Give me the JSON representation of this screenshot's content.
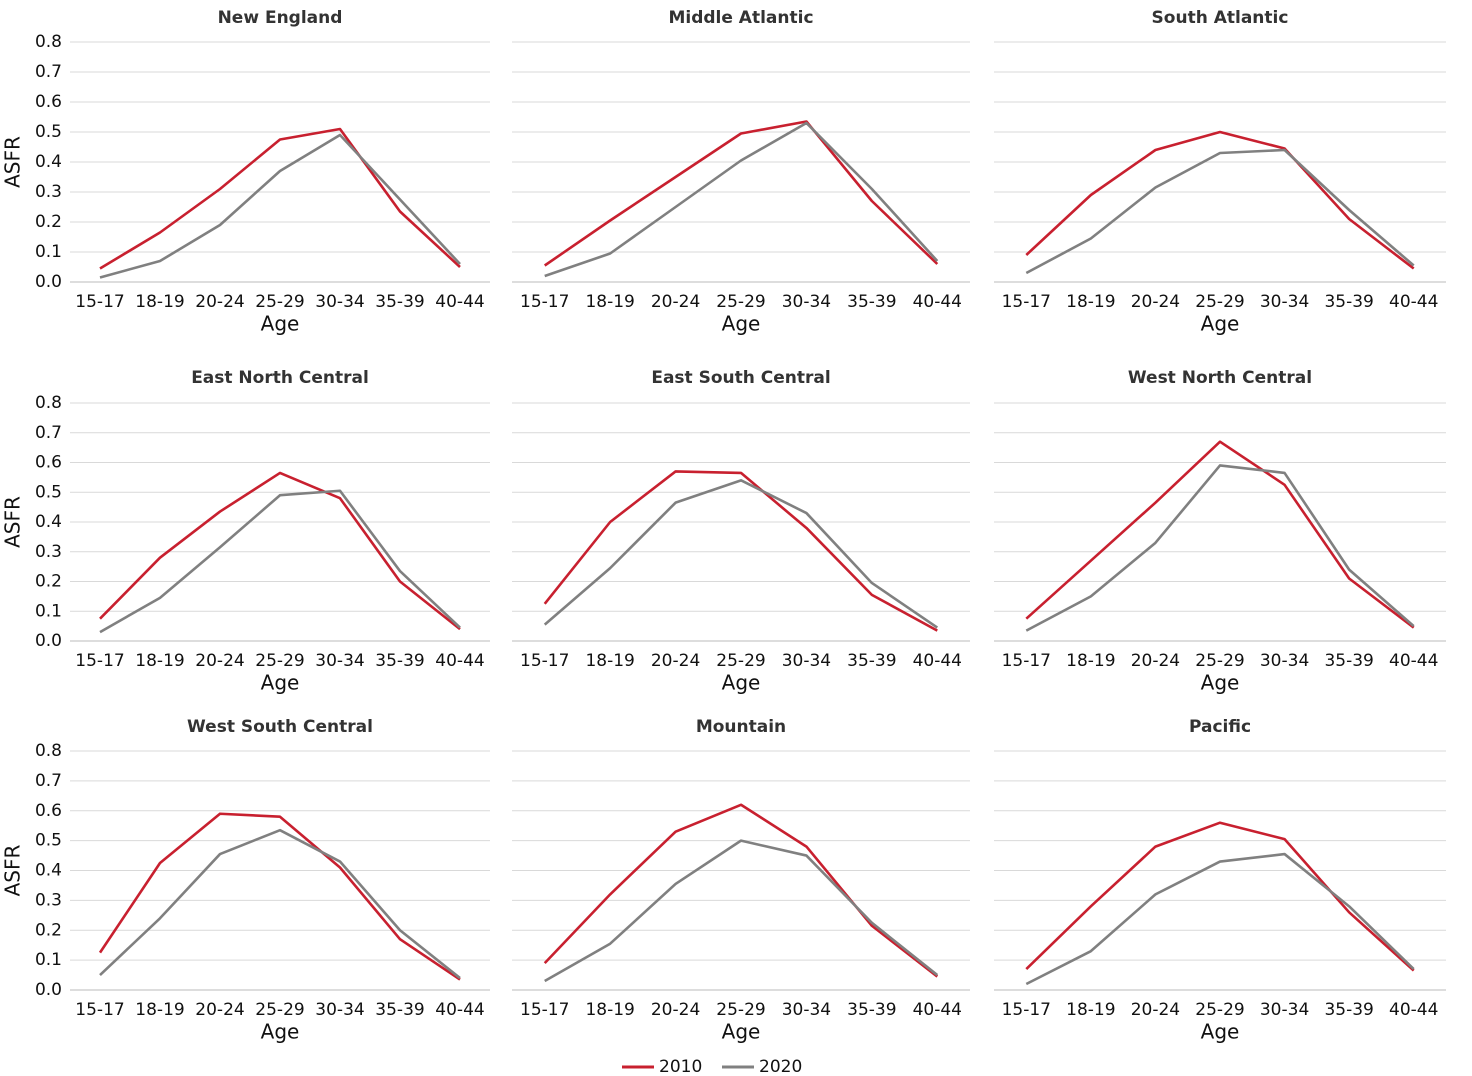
{
  "chart_data": [
    {
      "type": "line",
      "title": "New England",
      "xlabel": "Age",
      "ylabel": "ASFR",
      "categories": [
        "15-17",
        "18-19",
        "20-24",
        "25-29",
        "30-34",
        "35-39",
        "40-44"
      ],
      "series": [
        {
          "color": "#c8202f",
          "values": [
            0.045,
            0.165,
            0.31,
            0.475,
            0.51,
            0.235,
            0.05
          ]
        },
        {
          "color": "#808080",
          "values": [
            0.015,
            0.07,
            0.19,
            0.37,
            0.49,
            0.275,
            0.06
          ]
        }
      ],
      "ylim": [
        0,
        0.8
      ],
      "yticks": [
        {
          "value": 0,
          "label": "0.0"
        },
        0.1,
        0.2,
        0.3,
        0.4,
        0.5,
        0.6,
        0.7,
        0.8
      ],
      "grid": true
    },
    {
      "type": "line",
      "title": "Middle Atlantic",
      "xlabel": "Age",
      "categories": [
        "15-17",
        "18-19",
        "20-24",
        "25-29",
        "30-34",
        "35-39",
        "40-44"
      ],
      "series": [
        {
          "color": "#c8202f",
          "values": [
            0.055,
            0.205,
            0.35,
            0.495,
            0.535,
            0.27,
            0.06
          ]
        },
        {
          "color": "#808080",
          "values": [
            0.02,
            0.095,
            0.25,
            0.405,
            0.53,
            0.31,
            0.07
          ]
        }
      ],
      "ylim": [
        0,
        0.8
      ],
      "yticks": [
        0,
        0.1,
        0.2,
        0.3,
        0.4,
        0.5,
        0.6,
        0.7,
        0.8
      ],
      "grid": true
    },
    {
      "type": "line",
      "title": "South Atlantic",
      "xlabel": "Age",
      "categories": [
        "15-17",
        "18-19",
        "20-24",
        "25-29",
        "30-34",
        "35-39",
        "40-44"
      ],
      "series": [
        {
          "color": "#c8202f",
          "values": [
            0.09,
            0.29,
            0.44,
            0.5,
            0.445,
            0.21,
            0.045
          ]
        },
        {
          "color": "#808080",
          "values": [
            0.03,
            0.145,
            0.315,
            0.43,
            0.44,
            0.24,
            0.055
          ]
        }
      ],
      "ylim": [
        0,
        0.8
      ],
      "yticks": [
        0,
        0.1,
        0.2,
        0.3,
        0.4,
        0.5,
        0.6,
        0.7,
        0.8
      ],
      "grid": true
    },
    {
      "type": "line",
      "title": "East North Central",
      "xlabel": "Age",
      "ylabel": "ASFR",
      "categories": [
        "15-17",
        "18-19",
        "20-24",
        "25-29",
        "30-34",
        "35-39",
        "40-44"
      ],
      "series": [
        {
          "color": "#c8202f",
          "values": [
            0.075,
            0.28,
            0.435,
            0.565,
            0.48,
            0.2,
            0.04
          ]
        },
        {
          "color": "#808080",
          "values": [
            0.03,
            0.145,
            0.315,
            0.49,
            0.505,
            0.235,
            0.045
          ]
        }
      ],
      "ylim": [
        0,
        0.8
      ],
      "yticks": [
        {
          "value": 0,
          "label": "0.0"
        },
        0.1,
        0.2,
        0.3,
        0.4,
        0.5,
        0.6,
        0.7,
        0.8
      ],
      "grid": true
    },
    {
      "type": "line",
      "title": "East South Central",
      "xlabel": "Age",
      "categories": [
        "15-17",
        "18-19",
        "20-24",
        "25-29",
        "30-34",
        "35-39",
        "40-44"
      ],
      "series": [
        {
          "color": "#c8202f",
          "values": [
            0.125,
            0.4,
            0.57,
            0.565,
            0.38,
            0.155,
            0.035
          ]
        },
        {
          "color": "#808080",
          "values": [
            0.055,
            0.245,
            0.465,
            0.54,
            0.43,
            0.195,
            0.045
          ]
        }
      ],
      "ylim": [
        0,
        0.8
      ],
      "yticks": [
        0,
        0.1,
        0.2,
        0.3,
        0.4,
        0.5,
        0.6,
        0.7,
        0.8
      ],
      "grid": true
    },
    {
      "type": "line",
      "title": "West North Central",
      "xlabel": "Age",
      "categories": [
        "15-17",
        "18-19",
        "20-24",
        "25-29",
        "30-34",
        "35-39",
        "40-44"
      ],
      "series": [
        {
          "color": "#c8202f",
          "values": [
            0.075,
            0.27,
            0.465,
            0.67,
            0.525,
            0.21,
            0.045
          ]
        },
        {
          "color": "#808080",
          "values": [
            0.035,
            0.15,
            0.33,
            0.59,
            0.565,
            0.24,
            0.05
          ]
        }
      ],
      "ylim": [
        0,
        0.8
      ],
      "yticks": [
        0,
        0.1,
        0.2,
        0.3,
        0.4,
        0.5,
        0.6,
        0.7,
        0.8
      ],
      "grid": true
    },
    {
      "type": "line",
      "title": "West South Central",
      "xlabel": "Age",
      "ylabel": "ASFR",
      "categories": [
        "15-17",
        "18-19",
        "20-24",
        "25-29",
        "30-34",
        "35-39",
        "40-44"
      ],
      "series": [
        {
          "color": "#c8202f",
          "values": [
            0.125,
            0.425,
            0.59,
            0.58,
            0.41,
            0.17,
            0.035
          ]
        },
        {
          "color": "#808080",
          "values": [
            0.05,
            0.24,
            0.455,
            0.535,
            0.43,
            0.2,
            0.04
          ]
        }
      ],
      "ylim": [
        0,
        0.8
      ],
      "yticks": [
        {
          "value": 0,
          "label": "0.0"
        },
        0.1,
        0.2,
        0.3,
        0.4,
        0.5,
        0.6,
        0.7,
        0.8
      ],
      "grid": true
    },
    {
      "type": "line",
      "title": "Mountain",
      "xlabel": "Age",
      "categories": [
        "15-17",
        "18-19",
        "20-24",
        "25-29",
        "30-34",
        "35-39",
        "40-44"
      ],
      "series": [
        {
          "color": "#c8202f",
          "values": [
            0.09,
            0.32,
            0.53,
            0.62,
            0.48,
            0.215,
            0.045
          ]
        },
        {
          "color": "#808080",
          "values": [
            0.03,
            0.155,
            0.355,
            0.5,
            0.45,
            0.225,
            0.05
          ]
        }
      ],
      "ylim": [
        0,
        0.8
      ],
      "yticks": [
        0,
        0.1,
        0.2,
        0.3,
        0.4,
        0.5,
        0.6,
        0.7,
        0.8
      ],
      "grid": true
    },
    {
      "type": "line",
      "title": "Pacific",
      "xlabel": "Age",
      "categories": [
        "15-17",
        "18-19",
        "20-24",
        "25-29",
        "30-34",
        "35-39",
        "40-44"
      ],
      "series": [
        {
          "color": "#c8202f",
          "values": [
            0.07,
            0.28,
            0.48,
            0.56,
            0.505,
            0.26,
            0.065
          ]
        },
        {
          "color": "#808080",
          "values": [
            0.02,
            0.13,
            0.32,
            0.43,
            0.455,
            0.28,
            0.07
          ]
        }
      ],
      "ylim": [
        0,
        0.8
      ],
      "yticks": [
        0,
        0.1,
        0.2,
        0.3,
        0.4,
        0.5,
        0.6,
        0.7,
        0.8
      ],
      "grid": true
    }
  ],
  "legend": {
    "items": [
      {
        "name": "2010",
        "color": "#c8202f"
      },
      {
        "name": "2020",
        "color": "#808080"
      }
    ]
  }
}
